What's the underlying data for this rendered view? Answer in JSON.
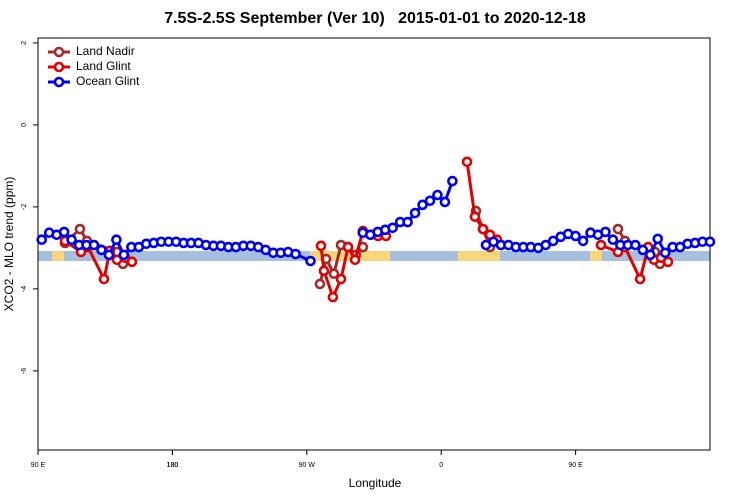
{
  "chart_data": {
    "type": "line",
    "title": "7.5S-2.5S September (Ver 10)   2015-01-01 to 2020-12-18",
    "xlabel": "Longitude",
    "ylabel": "XCO2 - MLO trend (ppm)",
    "xlim": [
      90,
      540
    ],
    "xticks": [
      {
        "value": 90,
        "label": "90 E"
      },
      180,
      {
        "value": 270,
        "label": "90 W"
      },
      {
        "value": 360,
        "label": "0"
      },
      {
        "value": 450,
        "label": "90 E"
      },
      180
    ],
    "ylim": [
      -7.93,
      2.12
    ],
    "yticks": [
      2,
      0,
      -2,
      -4,
      -6
    ],
    "legend": "top-left",
    "series": [
      {
        "name": "Land Nadir",
        "color": "#a52a2a",
        "x": [
          108.1,
          118.1,
          122.8,
          142.9,
          146.9,
          null,
          278.8,
          282.9,
          288.2,
          292.9,
          297.6,
          302.9,
          307.6,
          null,
          383.3,
          388,
          392.7,
          null,
          478.4,
          483.1,
          503.2,
          506.5
        ],
        "values": [
          -2.88,
          -2.54,
          -2.83,
          -3.1,
          -3.39,
          null,
          -3.88,
          -3.27,
          -3.63,
          -2.93,
          -2.98,
          -3.17,
          -2.98,
          null,
          -2.1,
          -2.54,
          -2.98,
          null,
          -2.54,
          -2.83,
          -3.1,
          -3.39
        ]
      },
      {
        "name": "Land Glint",
        "color": "#e00000",
        "x": [
          108.1,
          118.8,
          123.5,
          134.2,
          138.2,
          142.9,
          148.3,
          152.9,
          null,
          279.5,
          281.5,
          287.5,
          292.9,
          297.6,
          302.3,
          307.6,
          313,
          317.7,
          323,
          null,
          377.3,
          382.6,
          388,
          392.7,
          397.4,
          null,
          467,
          478.4,
          483.1,
          493.2,
          498.6,
          502.5,
          507.2,
          511.9
        ],
        "values": [
          -2.83,
          -3.1,
          -2.98,
          -3.76,
          -3.07,
          -3.29,
          -3.24,
          -3.34,
          null,
          -2.95,
          -3.56,
          -4.2,
          -3.76,
          -2.98,
          -3.29,
          -2.59,
          -2.68,
          -2.71,
          -2.71,
          null,
          -0.9,
          -2.24,
          -2.54,
          -2.68,
          -2.8,
          null,
          -2.93,
          -3.1,
          -2.98,
          -3.76,
          -2.98,
          -3.29,
          -3.24,
          -3.34
        ]
      },
      {
        "name": "Ocean Glint",
        "color": "#0000ee",
        "x": [
          92.5,
          97.5,
          102.5,
          107.5,
          112.5,
          117.5,
          122.5,
          127.5,
          132.5,
          137.5,
          142.5,
          147.5,
          152.5,
          157.5,
          162.5,
          167.5,
          172.5,
          177.5,
          182.5,
          187.5,
          192.5,
          197.5,
          202.5,
          207.5,
          212.5,
          217.5,
          222.5,
          227.5,
          232.5,
          237.5,
          242.5,
          247.5,
          252.5,
          257.5,
          262.5,
          272.5,
          null,
          307.5,
          312.5,
          317.5,
          322.5,
          327.5,
          332.5,
          337.5,
          342.5,
          347.5,
          352.5,
          357.5,
          362.5,
          367.5,
          null,
          390,
          395,
          400,
          405,
          410,
          415,
          420,
          425,
          430,
          435,
          440,
          445,
          450,
          455,
          460,
          465,
          470,
          475,
          480,
          485,
          490,
          495,
          500,
          505,
          510,
          515,
          520,
          525,
          530,
          535,
          540
        ],
        "values": [
          -2.8,
          -2.63,
          -2.68,
          -2.61,
          -2.8,
          -2.93,
          -2.93,
          -2.93,
          -3.05,
          -3.17,
          -2.8,
          -3.17,
          -2.98,
          -2.98,
          -2.9,
          -2.88,
          -2.85,
          -2.85,
          -2.85,
          -2.88,
          -2.88,
          -2.88,
          -2.93,
          -2.95,
          -2.95,
          -2.98,
          -2.98,
          -2.95,
          -2.95,
          -2.98,
          -3.05,
          -3.12,
          -3.12,
          -3.1,
          -3.15,
          -3.32,
          null,
          -2.63,
          -2.68,
          -2.61,
          -2.56,
          -2.51,
          -2.37,
          -2.37,
          -2.15,
          -1.95,
          -1.85,
          -1.71,
          -1.88,
          -1.37,
          null,
          -2.93,
          -2.85,
          -2.93,
          -2.93,
          -2.98,
          -2.98,
          -2.98,
          -3.0,
          -2.93,
          -2.83,
          -2.73,
          -2.66,
          -2.71,
          -2.83,
          -2.63,
          -2.68,
          -2.61,
          -2.8,
          -2.93,
          -2.93,
          -2.93,
          -3.05,
          -3.17,
          -2.78,
          -3.12,
          -2.98,
          -2.98,
          -2.9,
          -2.88,
          -2.85,
          -2.85
        ]
      }
    ]
  }
}
